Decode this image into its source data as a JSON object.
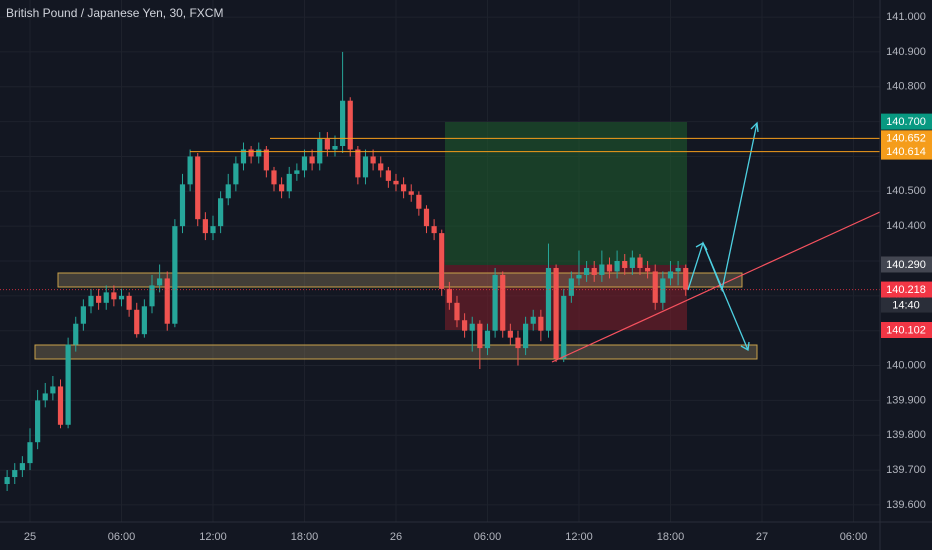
{
  "chart_data": {
    "type": "candlestick",
    "title": "British Pound / Japanese Yen, 30, FXCM",
    "x": [
      -1.5,
      -1,
      -0.5,
      0,
      0.5,
      1,
      1.5,
      2,
      2.5,
      3,
      3.5,
      4,
      4.5,
      5,
      5.5,
      6,
      6.5,
      7,
      7.5,
      8,
      8.5,
      9,
      9.5,
      10,
      10.5,
      11,
      11.5,
      12,
      12.5,
      13,
      13.5,
      14,
      14.5,
      15,
      15.5,
      16,
      16.5,
      17,
      17.5,
      18,
      18.5,
      19,
      19.5,
      20,
      20.5,
      21,
      21.5,
      22,
      22.5,
      23,
      23.5,
      24,
      24.5,
      25,
      25.5,
      26,
      26.5,
      27,
      27.5,
      28,
      28.5,
      29,
      29.5,
      30,
      30.5,
      31,
      31.5,
      32,
      32.5,
      33,
      33.5,
      34,
      34.5,
      35,
      35.5,
      36,
      36.5,
      37,
      37.5,
      38,
      38.5,
      39,
      39.5,
      40,
      40.5,
      41,
      41.5,
      42,
      42.5,
      43
    ],
    "open": [
      139.66,
      139.68,
      139.7,
      139.72,
      139.78,
      139.9,
      139.92,
      139.94,
      139.83,
      140.06,
      140.12,
      140.17,
      140.2,
      140.18,
      140.21,
      140.19,
      140.2,
      140.16,
      140.09,
      140.17,
      140.23,
      140.25,
      140.12,
      140.4,
      140.52,
      140.6,
      140.42,
      140.38,
      140.4,
      140.48,
      140.52,
      140.58,
      140.62,
      140.6,
      140.62,
      140.56,
      140.52,
      140.5,
      140.55,
      140.56,
      140.6,
      140.58,
      140.65,
      140.62,
      140.63,
      140.76,
      140.62,
      140.54,
      140.6,
      140.58,
      140.56,
      140.53,
      140.52,
      140.5,
      140.49,
      140.45,
      140.4,
      140.38,
      140.22,
      140.18,
      140.13,
      140.1,
      140.12,
      140.05,
      140.1,
      140.26,
      140.1,
      140.08,
      140.05,
      140.12,
      140.14,
      140.1,
      140.28,
      140.02,
      140.2,
      140.25,
      140.26,
      140.28,
      140.26,
      140.29,
      140.27,
      140.3,
      140.28,
      140.31,
      140.28,
      140.27,
      140.18,
      140.25,
      140.27,
      140.28
    ],
    "high": [
      139.7,
      139.72,
      139.74,
      139.82,
      139.93,
      139.95,
      139.97,
      139.96,
      140.08,
      140.14,
      140.19,
      140.22,
      140.22,
      140.23,
      140.23,
      140.22,
      140.21,
      140.18,
      140.19,
      140.26,
      140.29,
      140.27,
      140.42,
      140.55,
      140.62,
      140.61,
      140.44,
      140.43,
      140.5,
      140.55,
      140.6,
      140.64,
      140.63,
      140.64,
      140.63,
      140.57,
      140.54,
      140.57,
      140.58,
      140.62,
      140.62,
      140.67,
      140.67,
      140.66,
      140.9,
      140.77,
      140.63,
      140.62,
      140.62,
      140.6,
      140.57,
      140.55,
      140.54,
      140.52,
      140.5,
      140.46,
      140.42,
      140.39,
      140.24,
      140.2,
      140.15,
      140.14,
      140.13,
      140.12,
      140.28,
      140.27,
      140.12,
      140.1,
      140.14,
      140.16,
      140.16,
      140.35,
      140.29,
      140.22,
      140.27,
      140.33,
      140.3,
      140.3,
      140.33,
      140.31,
      140.33,
      140.32,
      140.33,
      140.32,
      140.3,
      140.29,
      140.27,
      140.3,
      140.3,
      140.29
    ],
    "low": [
      139.64,
      139.66,
      139.68,
      139.7,
      139.76,
      139.88,
      139.9,
      139.82,
      139.82,
      140.04,
      140.1,
      140.15,
      140.16,
      140.16,
      140.17,
      140.17,
      140.14,
      140.08,
      140.08,
      140.15,
      140.21,
      140.1,
      140.11,
      140.38,
      140.5,
      140.4,
      140.36,
      140.36,
      140.38,
      140.46,
      140.5,
      140.56,
      140.58,
      140.58,
      140.54,
      140.5,
      140.48,
      140.48,
      140.53,
      140.54,
      140.56,
      140.56,
      140.6,
      140.6,
      140.61,
      140.6,
      140.52,
      140.52,
      140.56,
      140.54,
      140.51,
      140.5,
      140.48,
      140.47,
      140.43,
      140.38,
      140.36,
      140.2,
      140.16,
      140.11,
      140.08,
      140.04,
      139.99,
      140.03,
      140.08,
      140.08,
      140.06,
      140.0,
      140.03,
      140.1,
      140.07,
      140.08,
      140.01,
      140.01,
      140.18,
      140.23,
      140.24,
      140.24,
      140.24,
      140.25,
      140.25,
      140.26,
      140.26,
      140.26,
      140.25,
      140.16,
      140.16,
      140.23,
      140.23,
      140.2
    ],
    "close": [
      139.68,
      139.7,
      139.72,
      139.78,
      139.9,
      139.92,
      139.94,
      139.83,
      140.06,
      140.12,
      140.17,
      140.2,
      140.18,
      140.21,
      140.19,
      140.2,
      140.16,
      140.09,
      140.17,
      140.23,
      140.25,
      140.12,
      140.4,
      140.52,
      140.6,
      140.42,
      140.38,
      140.4,
      140.48,
      140.52,
      140.58,
      140.62,
      140.6,
      140.62,
      140.56,
      140.52,
      140.5,
      140.55,
      140.56,
      140.6,
      140.58,
      140.65,
      140.62,
      140.63,
      140.76,
      140.62,
      140.54,
      140.6,
      140.58,
      140.56,
      140.53,
      140.52,
      140.5,
      140.49,
      140.45,
      140.4,
      140.38,
      140.22,
      140.18,
      140.13,
      140.1,
      140.12,
      140.05,
      140.1,
      140.26,
      140.1,
      140.08,
      140.05,
      140.12,
      140.14,
      140.1,
      140.28,
      140.02,
      140.2,
      140.25,
      140.26,
      140.28,
      140.26,
      140.29,
      140.27,
      140.3,
      140.28,
      140.31,
      140.28,
      140.27,
      140.18,
      140.25,
      140.27,
      140.28,
      140.218
    ],
    "up_color": "#26a69a",
    "down_color": "#ef5350",
    "xlim": [
      -1.967,
      55.74
    ],
    "xticks": [
      {
        "value": 0,
        "label": "25"
      },
      {
        "value": 6,
        "label": "06:00"
      },
      {
        "value": 12,
        "label": "12:00"
      },
      {
        "value": 18,
        "label": "18:00"
      },
      {
        "value": 24,
        "label": "26"
      },
      {
        "value": 30,
        "label": "06:00"
      },
      {
        "value": 36,
        "label": "12:00"
      },
      {
        "value": 42,
        "label": "18:00"
      },
      {
        "value": 48,
        "label": "27"
      },
      {
        "value": 54,
        "label": "06:00"
      }
    ],
    "ylim": [
      139.551,
      141.049
    ],
    "yticks": [
      {
        "value": 139.6,
        "label": "139.600"
      },
      {
        "value": 139.7,
        "label": "139.700"
      },
      {
        "value": 139.8,
        "label": "139.800"
      },
      {
        "value": 139.9,
        "label": "139.900"
      },
      {
        "value": 140,
        "label": "140.000"
      },
      {
        "value": 140.1,
        "label": "140.100"
      },
      {
        "value": 140.2,
        "label": "140.200"
      },
      {
        "value": 140.3,
        "label": "140.300"
      },
      {
        "value": 140.4,
        "label": "140.400"
      },
      {
        "value": 140.5,
        "label": "140.500"
      },
      {
        "value": 140.6,
        "label": "140.600"
      },
      {
        "value": 140.7,
        "label": "140.700"
      },
      {
        "value": 140.8,
        "label": "140.800"
      },
      {
        "value": 140.9,
        "label": "140.900"
      },
      {
        "value": 141,
        "label": "141.000"
      }
    ],
    "grid": true,
    "price_labels": [
      {
        "value": 140.7,
        "label": "140.700",
        "color": "#089981"
      },
      {
        "value": 140.652,
        "label": "140.652",
        "color": "#f59d1b"
      },
      {
        "value": 140.614,
        "label": "140.614",
        "color": "#f59d1b"
      },
      {
        "value": 140.29,
        "label": "140.290",
        "color": "#434651"
      },
      {
        "value": 140.218,
        "label": "140.218",
        "color": "#f23645"
      },
      {
        "value": 140.102,
        "label": "140.102",
        "color": "#f23645"
      }
    ],
    "countdown": "14:40"
  }
}
